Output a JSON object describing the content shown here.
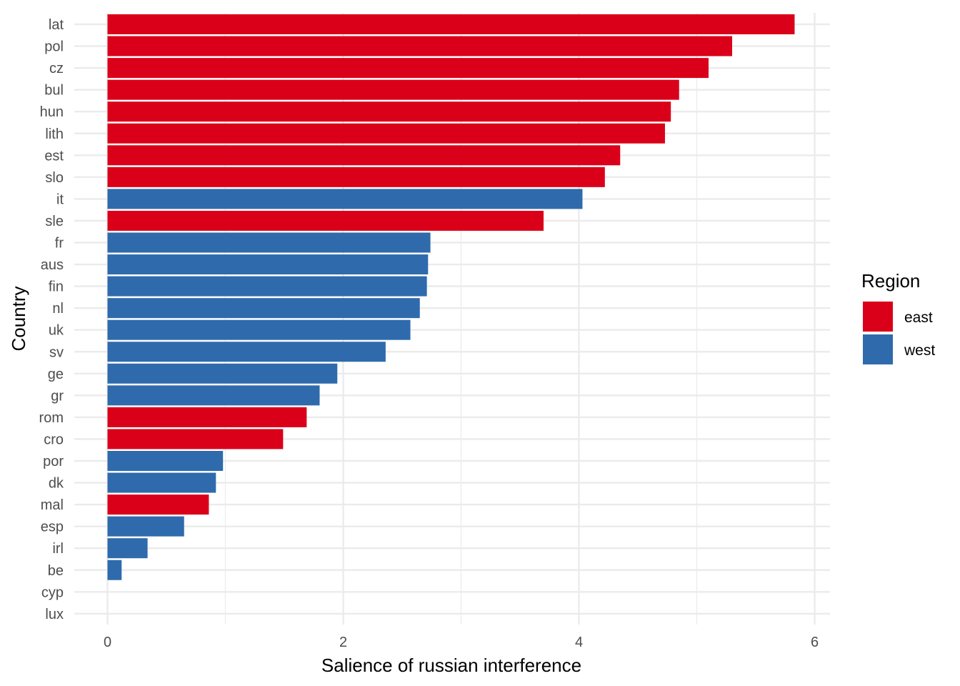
{
  "chart_data": {
    "type": "bar",
    "orientation": "horizontal",
    "xlabel": "Salience of russian interference",
    "ylabel": "Country",
    "xlim": [
      -0.28,
      6.12
    ],
    "xticks": [
      0,
      2,
      4,
      6
    ],
    "grid": true,
    "legend": {
      "title": "Region",
      "placement": "right",
      "entries": [
        {
          "name": "east",
          "color": "#DA0019"
        },
        {
          "name": "west",
          "color": "#2F6BAC"
        }
      ]
    },
    "categories": [
      "lat",
      "pol",
      "cz",
      "bul",
      "hun",
      "lith",
      "est",
      "slo",
      "it",
      "sle",
      "fr",
      "aus",
      "fin",
      "nl",
      "uk",
      "sv",
      "ge",
      "gr",
      "rom",
      "cro",
      "por",
      "dk",
      "mal",
      "esp",
      "irl",
      "be",
      "cyp",
      "lux"
    ],
    "values": [
      5.83,
      5.3,
      5.1,
      4.85,
      4.78,
      4.73,
      4.35,
      4.22,
      4.03,
      3.7,
      2.74,
      2.72,
      2.71,
      2.65,
      2.57,
      2.36,
      1.95,
      1.8,
      1.69,
      1.49,
      0.98,
      0.92,
      0.86,
      0.65,
      0.34,
      0.12,
      0,
      0
    ],
    "regions": [
      "east",
      "east",
      "east",
      "east",
      "east",
      "east",
      "east",
      "east",
      "west",
      "east",
      "west",
      "west",
      "west",
      "west",
      "west",
      "west",
      "west",
      "west",
      "east",
      "east",
      "west",
      "west",
      "east",
      "west",
      "west",
      "west",
      "west",
      "west"
    ]
  }
}
